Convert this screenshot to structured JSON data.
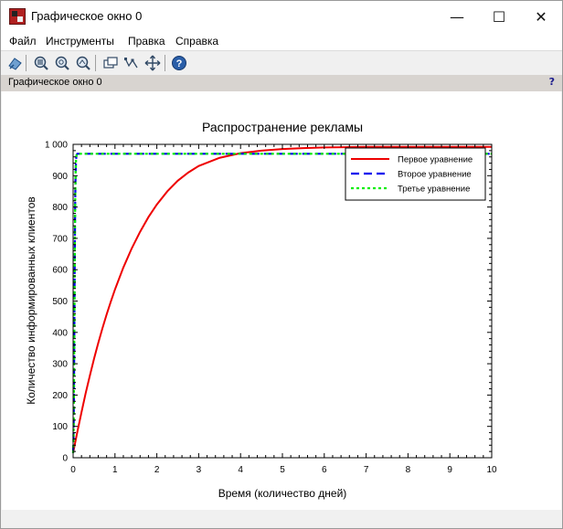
{
  "window": {
    "title": "Графическое окно 0",
    "controls": {
      "minimize": "—",
      "maximize": "☐",
      "close": "✕"
    }
  },
  "menu": [
    "Файл",
    "Инструменты",
    "Правка",
    "Справка"
  ],
  "toolbar": {
    "icons": [
      "rotate-icon",
      "zoom-area-icon",
      "zoom-in-icon",
      "zoom-out-icon",
      "datatip-icon",
      "datatip-edit-icon",
      "pan-icon",
      "help-icon"
    ]
  },
  "info_bar": {
    "label": "Графическое окно 0",
    "help": "?"
  },
  "chart_data": {
    "type": "line",
    "title": "Распространение рекламы",
    "xlabel": "Время (количество дней)",
    "ylabel": "Количество информированных клиентов",
    "xlim": [
      0,
      10
    ],
    "ylim": [
      0,
      1000
    ],
    "x_ticks": [
      0,
      1,
      2,
      3,
      4,
      5,
      6,
      7,
      8,
      9,
      10
    ],
    "x_tick_labels": [
      "0",
      "1",
      "2",
      "3",
      "4",
      "5",
      "6",
      "7",
      "8",
      "9",
      "10"
    ],
    "y_ticks": [
      0,
      100,
      200,
      300,
      400,
      500,
      600,
      700,
      800,
      900,
      1000
    ],
    "y_tick_labels": [
      "0",
      "100",
      "200",
      "300",
      "400",
      "500",
      "600",
      "700",
      "800",
      "900",
      "1 000"
    ],
    "grid": false,
    "legend_position": "top-right",
    "series": [
      {
        "name": "Первое уравнение",
        "color": "#ee0000",
        "style": "solid",
        "x": [
          0,
          0.1,
          0.2,
          0.3,
          0.4,
          0.5,
          0.6,
          0.7,
          0.8,
          0.9,
          1.0,
          1.2,
          1.4,
          1.6,
          1.8,
          2.0,
          2.25,
          2.5,
          2.75,
          3.0,
          3.5,
          4.0,
          4.5,
          5.0,
          5.5,
          6.0,
          6.5,
          7.0,
          7.5,
          8.0,
          8.5,
          9.0,
          9.5,
          10.0
        ],
        "y": [
          15,
          82,
          145,
          206,
          262,
          316,
          366,
          413,
          457,
          498,
          537,
          607,
          668,
          721,
          768,
          808,
          850,
          884,
          910,
          931,
          957,
          972,
          980,
          985,
          988,
          990,
          991,
          992,
          992,
          992,
          992,
          992,
          992,
          992
        ]
      },
      {
        "name": "Второе уравнение",
        "color": "#0000ee",
        "style": "dashed",
        "x": [
          0,
          0.01,
          0.02,
          0.03,
          0.04,
          0.05,
          0.06,
          0.07,
          0.08,
          0.1,
          0.15,
          1,
          2,
          3,
          4,
          5,
          6,
          7,
          8,
          9,
          10
        ],
        "y": [
          15,
          60,
          200,
          420,
          650,
          820,
          910,
          950,
          965,
          970,
          970,
          970,
          970,
          970,
          970,
          970,
          970,
          970,
          970,
          970,
          970
        ]
      },
      {
        "name": "Третье уравнение",
        "color": "#00ee00",
        "style": "dotted",
        "x": [
          0,
          0.01,
          0.02,
          0.03,
          0.04,
          0.05,
          0.06,
          0.07,
          0.08,
          0.1,
          0.15,
          1,
          2,
          3,
          4,
          5,
          6,
          7,
          8,
          9,
          10
        ],
        "y": [
          15,
          60,
          200,
          420,
          650,
          820,
          910,
          950,
          965,
          970,
          970,
          970,
          970,
          970,
          970,
          970,
          970,
          970,
          970,
          970,
          970
        ]
      }
    ]
  }
}
